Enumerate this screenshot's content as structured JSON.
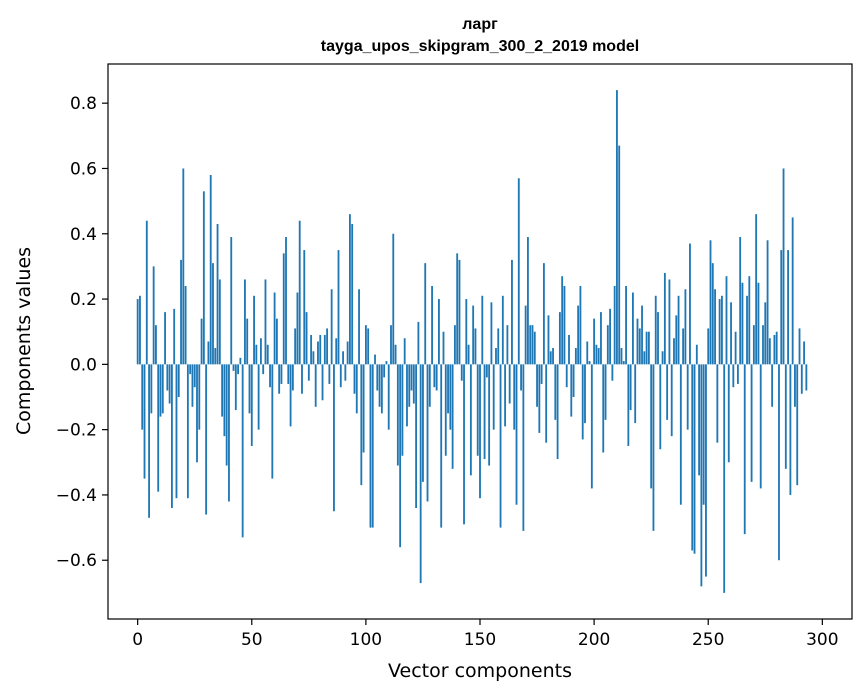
{
  "chart_data": {
    "type": "bar",
    "title_line1": "ларг",
    "title_line2": "tayga_upos_skipgram_300_2_2019 model",
    "xlabel": "Vector components",
    "ylabel": "Components values",
    "xlim": [
      -13,
      313
    ],
    "ylim": [
      -0.78,
      0.92
    ],
    "xticks": [
      0,
      50,
      100,
      150,
      200,
      250,
      300
    ],
    "xtick_labels": [
      "0",
      "50",
      "100",
      "150",
      "200",
      "250",
      "300"
    ],
    "yticks": [
      -0.6,
      -0.4,
      -0.2,
      0.0,
      0.2,
      0.4,
      0.6,
      0.8
    ],
    "ytick_labels": [
      "−0.6",
      "−0.4",
      "−0.2",
      "0.0",
      "0.2",
      "0.4",
      "0.6",
      "0.8"
    ],
    "color": "#1f77b4",
    "values": [
      0.2,
      0.21,
      -0.2,
      -0.35,
      0.44,
      -0.47,
      -0.15,
      0.3,
      0.12,
      -0.39,
      -0.16,
      -0.15,
      0.16,
      -0.08,
      -0.12,
      -0.44,
      0.17,
      -0.41,
      -0.1,
      0.32,
      0.6,
      0.24,
      -0.41,
      -0.03,
      -0.13,
      -0.07,
      -0.3,
      -0.2,
      0.14,
      0.53,
      -0.46,
      0.07,
      0.58,
      0.31,
      0.05,
      0.43,
      0.26,
      -0.16,
      -0.22,
      -0.31,
      -0.42,
      0.39,
      -0.02,
      -0.14,
      -0.03,
      0.02,
      -0.53,
      0.26,
      0.14,
      -0.15,
      -0.25,
      0.21,
      0.06,
      -0.2,
      0.08,
      -0.03,
      0.26,
      0.06,
      -0.07,
      -0.35,
      0.22,
      0.14,
      -0.09,
      -0.06,
      0.34,
      0.39,
      -0.06,
      -0.19,
      -0.08,
      0.11,
      0.22,
      0.44,
      -0.09,
      0.35,
      0.16,
      -0.05,
      0.09,
      0.04,
      -0.13,
      0.07,
      0.09,
      -0.11,
      0.09,
      0.11,
      -0.06,
      0.23,
      -0.45,
      0.08,
      0.35,
      -0.07,
      0.04,
      -0.05,
      0.07,
      0.46,
      0.43,
      -0.09,
      -0.15,
      0.23,
      -0.37,
      -0.27,
      0.12,
      0.11,
      -0.5,
      -0.5,
      0.03,
      -0.08,
      -0.13,
      -0.15,
      -0.04,
      0.01,
      -0.2,
      0.12,
      0.4,
      0.06,
      -0.31,
      -0.56,
      -0.28,
      0.08,
      -0.19,
      -0.13,
      -0.08,
      -0.12,
      -0.44,
      0.13,
      -0.67,
      -0.36,
      0.31,
      -0.42,
      -0.13,
      0.24,
      -0.07,
      -0.08,
      0.2,
      -0.5,
      0.1,
      -0.28,
      -0.15,
      -0.2,
      -0.32,
      0.12,
      0.34,
      0.32,
      -0.05,
      -0.49,
      0.2,
      0.06,
      -0.34,
      0.18,
      0.11,
      -0.28,
      -0.41,
      0.21,
      -0.29,
      -0.04,
      -0.31,
      0.19,
      -0.2,
      0.05,
      0.11,
      -0.5,
      0.21,
      -0.19,
      0.12,
      -0.12,
      0.32,
      -0.2,
      -0.43,
      0.57,
      -0.08,
      -0.51,
      0.18,
      0.39,
      0.12,
      0.12,
      0.1,
      -0.13,
      -0.21,
      -0.06,
      0.31,
      -0.24,
      0.15,
      0.04,
      0.05,
      -0.17,
      -0.29,
      0.16,
      0.27,
      0.24,
      -0.07,
      0.09,
      -0.16,
      -0.1,
      0.05,
      0.18,
      0.24,
      -0.23,
      -0.18,
      0.07,
      0.01,
      -0.38,
      0.14,
      0.06,
      0.05,
      0.16,
      -0.27,
      -0.17,
      0.12,
      0.17,
      -0.05,
      0.24,
      0.84,
      0.67,
      0.05,
      0.01,
      0.24,
      -0.25,
      -0.14,
      0.22,
      -0.18,
      0.14,
      0.11,
      0.18,
      0.04,
      0.1,
      0.1,
      -0.38,
      -0.51,
      0.21,
      0.16,
      -0.26,
      0.04,
      0.28,
      -0.17,
      0.26,
      -0.22,
      0.08,
      0.15,
      0.21,
      -0.43,
      0.11,
      0.23,
      -0.2,
      0.37,
      -0.57,
      -0.58,
      0.06,
      -0.34,
      -0.68,
      -0.43,
      -0.65,
      0.11,
      0.38,
      0.31,
      0.23,
      -0.24,
      0.2,
      0.21,
      -0.7,
      0.27,
      -0.3,
      0.19,
      -0.07,
      0.1,
      -0.06,
      0.39,
      0.25,
      -0.52,
      0.21,
      0.27,
      -0.36,
      0.12,
      0.46,
      0.25,
      -0.38,
      0.12,
      0.19,
      0.38,
      0.08,
      -0.13,
      0.09,
      0.1,
      -0.6,
      0.35,
      0.6,
      -0.32,
      0.35,
      -0.4,
      0.45,
      -0.13,
      -0.37,
      0.11,
      -0.09,
      0.07,
      -0.08
    ]
  }
}
